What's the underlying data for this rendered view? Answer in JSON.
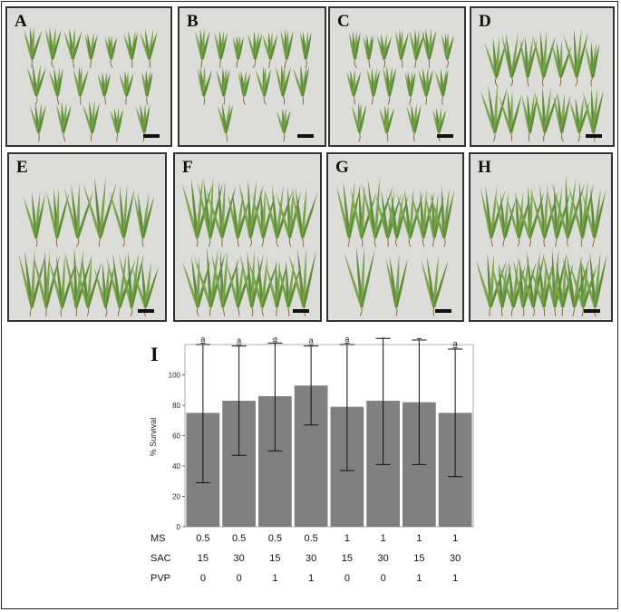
{
  "panels": [
    {
      "label": "A",
      "rows": [
        7,
        6,
        5
      ]
    },
    {
      "label": "B",
      "rows": [
        7,
        6,
        2
      ]
    },
    {
      "label": "C",
      "rows": [
        7,
        6,
        4
      ]
    },
    {
      "label": "D",
      "rows": [
        7,
        7
      ]
    },
    {
      "label": "E",
      "rows": [
        6,
        9
      ]
    },
    {
      "label": "F",
      "rows": [
        9,
        9
      ]
    },
    {
      "label": "G",
      "rows": [
        9,
        3
      ]
    },
    {
      "label": "H",
      "rows": [
        9,
        11
      ]
    }
  ],
  "chart_label": "I",
  "chart_data": {
    "type": "bar",
    "ylabel": "% Survival",
    "ylim": [
      0,
      120
    ],
    "yticks": [
      0,
      20,
      40,
      60,
      80,
      100
    ],
    "values": [
      75,
      83,
      86,
      93,
      79,
      83,
      82,
      75
    ],
    "err_low": [
      29,
      47,
      50,
      67,
      37,
      41,
      41,
      33
    ],
    "err_high": [
      120,
      119,
      121,
      119,
      120,
      124,
      123,
      117
    ],
    "significance": [
      "a",
      "a",
      "a",
      "a",
      "a",
      "a",
      "a",
      "a"
    ],
    "factor_rows": [
      {
        "name": "MS",
        "values": [
          "0.5",
          "0.5",
          "0.5",
          "0.5",
          "1",
          "1",
          "1",
          "1"
        ]
      },
      {
        "name": "SAC",
        "values": [
          "15",
          "30",
          "15",
          "30",
          "15",
          "30",
          "15",
          "30"
        ]
      },
      {
        "name": "PVP",
        "values": [
          "0",
          "0",
          "1",
          "1",
          "0",
          "0",
          "1",
          "1"
        ]
      }
    ],
    "bar_color": "#808080"
  }
}
